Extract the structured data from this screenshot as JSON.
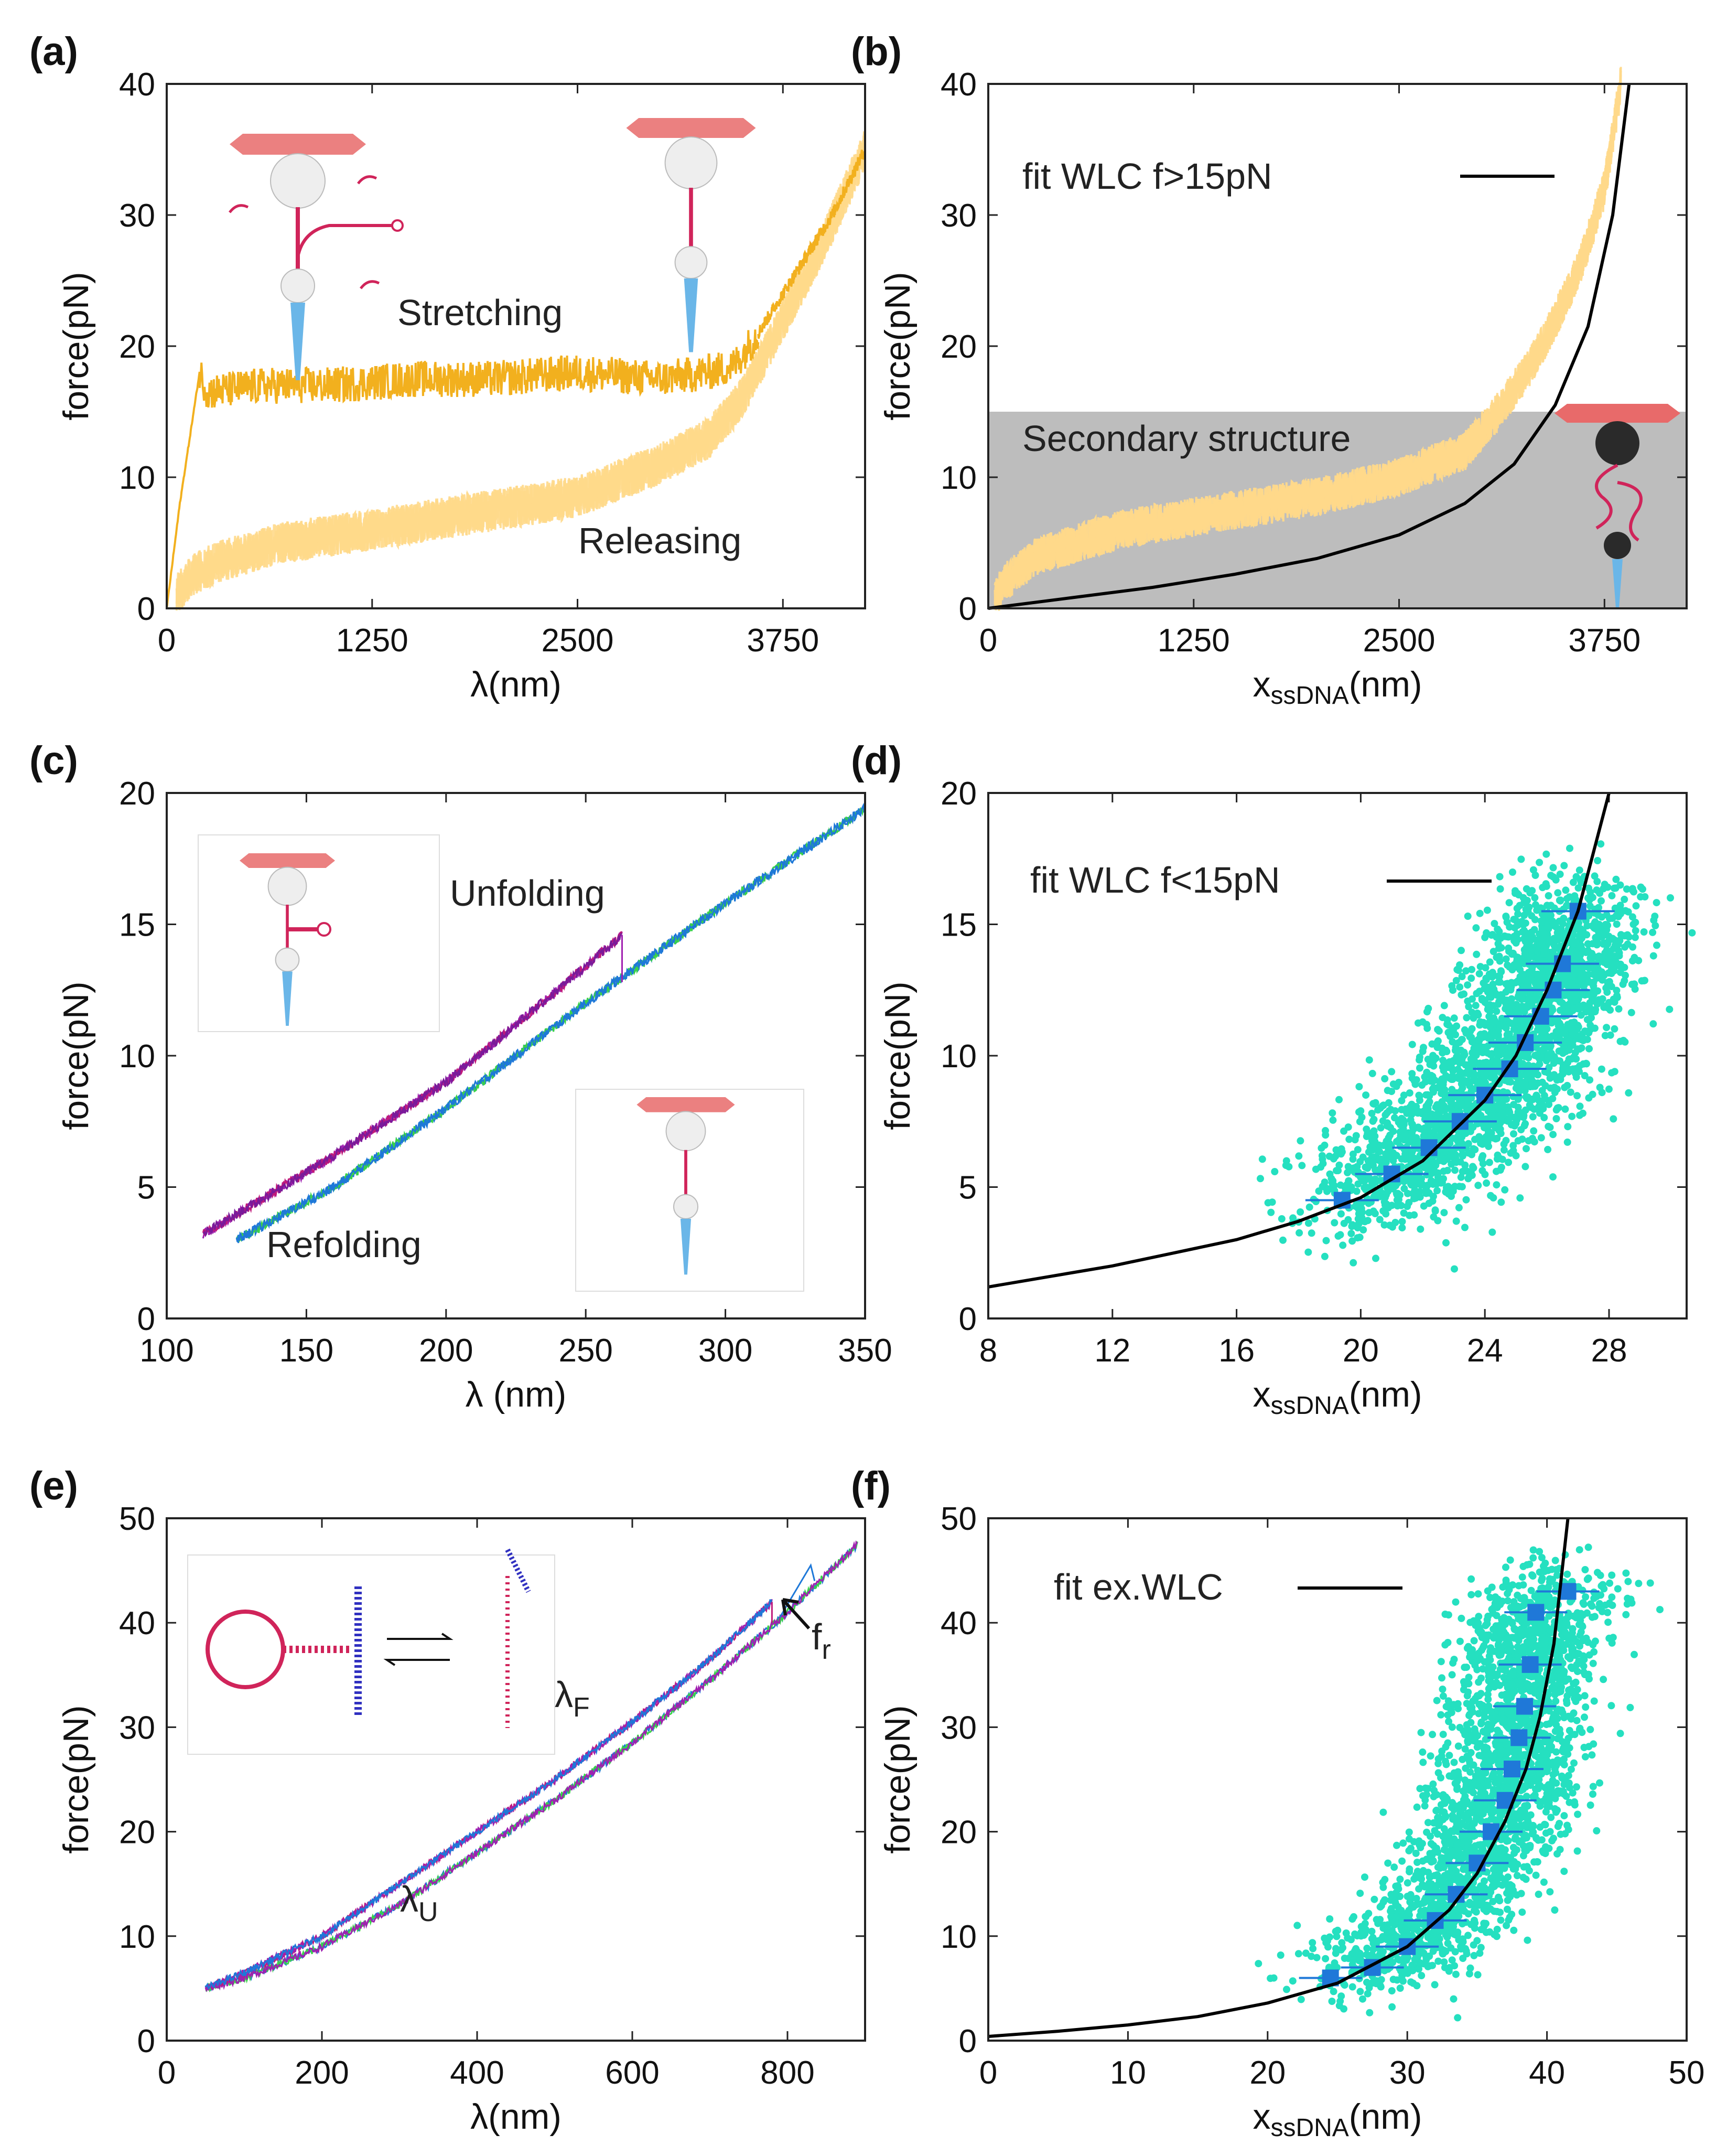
{
  "figure": {
    "colors": {
      "stretch": "#f2b01e",
      "release": "#ffd98a",
      "gray": "#bdbdbd",
      "fit": "#000000",
      "scatter": "#25e0c0",
      "binned": "#1f78d8",
      "purple": "#a020b0",
      "blue": "#1e78d8",
      "green": "#3ad24a",
      "magenta": "#c01a7a",
      "dna": "#d0245a",
      "bead_top": "#e86a6a",
      "needle": "#6ab6e8",
      "bead": "#eeeeee"
    }
  },
  "chart_data": [
    {
      "id": "a",
      "panel_label": "(a)",
      "type": "line",
      "xlabel": "λ(nm)",
      "ylabel": "force(pN)",
      "xlim": [
        0,
        4250
      ],
      "ylim": [
        0,
        40
      ],
      "xticks": [
        0,
        1250,
        2500,
        3750
      ],
      "yticks": [
        0,
        10,
        20,
        30,
        40
      ],
      "annotations": [
        "Stretching",
        "Releasing"
      ],
      "series": [
        {
          "name": "Stretching",
          "x": [
            0,
            80,
            200,
            250,
            600,
            1000,
            1500,
            2000,
            2500,
            3000,
            3300,
            3450,
            3600,
            3750,
            3900,
            4050,
            4250
          ],
          "y": [
            0,
            8,
            18,
            16.5,
            17,
            17,
            17.5,
            17.5,
            18,
            17.5,
            18,
            18.5,
            21,
            24,
            27,
            30,
            35
          ]
        },
        {
          "name": "Releasing",
          "x": [
            0,
            150,
            300,
            700,
            1250,
            2000,
            2500,
            3000,
            3300,
            3500,
            3750,
            4000,
            4250
          ],
          "y": [
            0,
            2.5,
            3.5,
            5,
            6,
            7.5,
            8.5,
            11,
            13,
            16,
            22,
            28,
            35
          ]
        }
      ]
    },
    {
      "id": "b",
      "panel_label": "(b)",
      "type": "line",
      "xlabel_main": "x",
      "xlabel_sub": "ssDNA",
      "xlabel_unit": "(nm)",
      "ylabel": "force(pN)",
      "xlim": [
        0,
        4250
      ],
      "ylim": [
        0,
        40
      ],
      "xticks": [
        0,
        1250,
        2500,
        3750
      ],
      "yticks": [
        0,
        10,
        20,
        30,
        40
      ],
      "legend": "fit WLC f>15pN",
      "shaded_region_label": "Secondary structure",
      "shaded_ylim": [
        0,
        15
      ],
      "series": [
        {
          "name": "data",
          "x": [
            0,
            100,
            300,
            800,
            1500,
            2000,
            2500,
            2900,
            3100,
            3300,
            3450,
            3600,
            3750,
            3850
          ],
          "y": [
            0,
            2,
            4,
            6,
            7.5,
            8.5,
            10,
            12,
            15,
            18.5,
            22,
            26,
            32,
            40
          ]
        },
        {
          "name": "fit WLC f>15pN",
          "x": [
            0,
            500,
            1000,
            1500,
            2000,
            2500,
            2900,
            3200,
            3450,
            3650,
            3800,
            3900
          ],
          "y": [
            0,
            0.8,
            1.6,
            2.6,
            3.8,
            5.6,
            8.0,
            11.0,
            15.5,
            21.5,
            30,
            40
          ]
        }
      ]
    },
    {
      "id": "c",
      "panel_label": "(c)",
      "type": "line",
      "xlabel": "λ (nm)",
      "ylabel": "force(pN)",
      "xlim": [
        100,
        350
      ],
      "ylim": [
        0,
        20
      ],
      "xticks": [
        100,
        150,
        200,
        250,
        300,
        350
      ],
      "yticks": [
        0,
        5,
        10,
        15,
        20
      ],
      "annotations": [
        "Unfolding",
        "Refolding"
      ],
      "series": [
        {
          "name": "Unfolding",
          "x": [
            113,
            160,
            200,
            240,
            263
          ],
          "y": [
            3.2,
            6.2,
            9.0,
            12.5,
            14.6
          ]
        },
        {
          "name": "jump",
          "x": [
            263,
            263
          ],
          "y": [
            14.6,
            12.8
          ]
        },
        {
          "name": "Refolding",
          "x": [
            125,
            160,
            200,
            250,
            300,
            350
          ],
          "y": [
            3.0,
            5.0,
            8.0,
            12.0,
            15.8,
            19.4
          ]
        }
      ]
    },
    {
      "id": "d",
      "panel_label": "(d)",
      "type": "scatter",
      "xlabel_main": "x",
      "xlabel_sub": "ssDNA",
      "xlabel_unit": "(nm)",
      "ylabel": "force(pN)",
      "xlim": [
        8,
        30.5
      ],
      "ylim": [
        0,
        20
      ],
      "xticks": [
        8,
        12,
        16,
        20,
        24,
        28
      ],
      "yticks": [
        0,
        5,
        10,
        15,
        20
      ],
      "legend": "fit WLC f<15pN",
      "binned": {
        "x": [
          19.4,
          21.0,
          22.2,
          23.2,
          24.0,
          24.8,
          25.3,
          25.8,
          26.2,
          26.5,
          27.0
        ],
        "y": [
          4.5,
          5.5,
          6.5,
          7.5,
          8.5,
          9.5,
          10.5,
          11.5,
          12.5,
          13.5,
          15.5
        ]
      },
      "fit": {
        "x": [
          8,
          10,
          12,
          14,
          16,
          18,
          20,
          22,
          24,
          25,
          26,
          27,
          28
        ],
        "y": [
          1.2,
          1.6,
          2.0,
          2.5,
          3.0,
          3.7,
          4.6,
          6.0,
          8.3,
          10.0,
          12.5,
          15.5,
          20
        ]
      }
    },
    {
      "id": "e",
      "panel_label": "(e)",
      "type": "line",
      "xlabel": "λ(nm)",
      "ylabel": "force(pN)",
      "xlim": [
        0,
        900
      ],
      "ylim": [
        0,
        50
      ],
      "xticks": [
        0,
        200,
        400,
        600,
        800
      ],
      "yticks": [
        0,
        10,
        20,
        30,
        40,
        50
      ],
      "annotations": {
        "lambda_F_main": "λ",
        "lambda_F_sub": "F",
        "lambda_U_main": "λ",
        "lambda_U_sub": "U",
        "fr_main": "f",
        "fr_sub": "r"
      },
      "series": [
        {
          "name": "folded",
          "x": [
            50,
            100,
            200,
            300,
            400,
            500,
            600,
            700,
            780
          ],
          "y": [
            5,
            6.5,
            10,
            15,
            20,
            25,
            30.5,
            36.5,
            42
          ]
        },
        {
          "name": "unfolded",
          "x": [
            50,
            100,
            200,
            300,
            400,
            500,
            600,
            700,
            800,
            890
          ],
          "y": [
            5,
            6,
            9,
            13,
            18,
            23,
            28.5,
            34.5,
            41,
            47.5
          ]
        },
        {
          "name": "jump",
          "x": [
            780,
            780
          ],
          "y": [
            42,
            40
          ]
        }
      ]
    },
    {
      "id": "f",
      "panel_label": "(f)",
      "type": "scatter",
      "xlabel_main": "x",
      "xlabel_sub": "ssDNA",
      "xlabel_unit": "(nm)",
      "ylabel": "force(pN)",
      "xlim": [
        0,
        50
      ],
      "ylim": [
        0,
        50
      ],
      "xticks": [
        0,
        10,
        20,
        30,
        40,
        50
      ],
      "yticks": [
        0,
        10,
        20,
        30,
        40,
        50
      ],
      "legend": "fit ex.WLC",
      "binned": {
        "x": [
          24.5,
          27.5,
          30.0,
          32.0,
          33.5,
          35.0,
          36.0,
          37.0,
          37.5,
          38.0,
          38.4,
          38.8,
          39.2,
          41.5
        ],
        "y": [
          6,
          7,
          9,
          11.5,
          14,
          17,
          20,
          23,
          26,
          29,
          32,
          36,
          41,
          43
        ]
      },
      "fit": {
        "x": [
          0,
          5,
          10,
          15,
          20,
          25,
          30,
          33,
          35,
          37,
          38.5,
          39.5,
          40.5,
          41.5
        ],
        "y": [
          0.4,
          0.9,
          1.5,
          2.3,
          3.6,
          5.5,
          9.0,
          12.5,
          16,
          21,
          26,
          31,
          38,
          50
        ]
      }
    }
  ]
}
